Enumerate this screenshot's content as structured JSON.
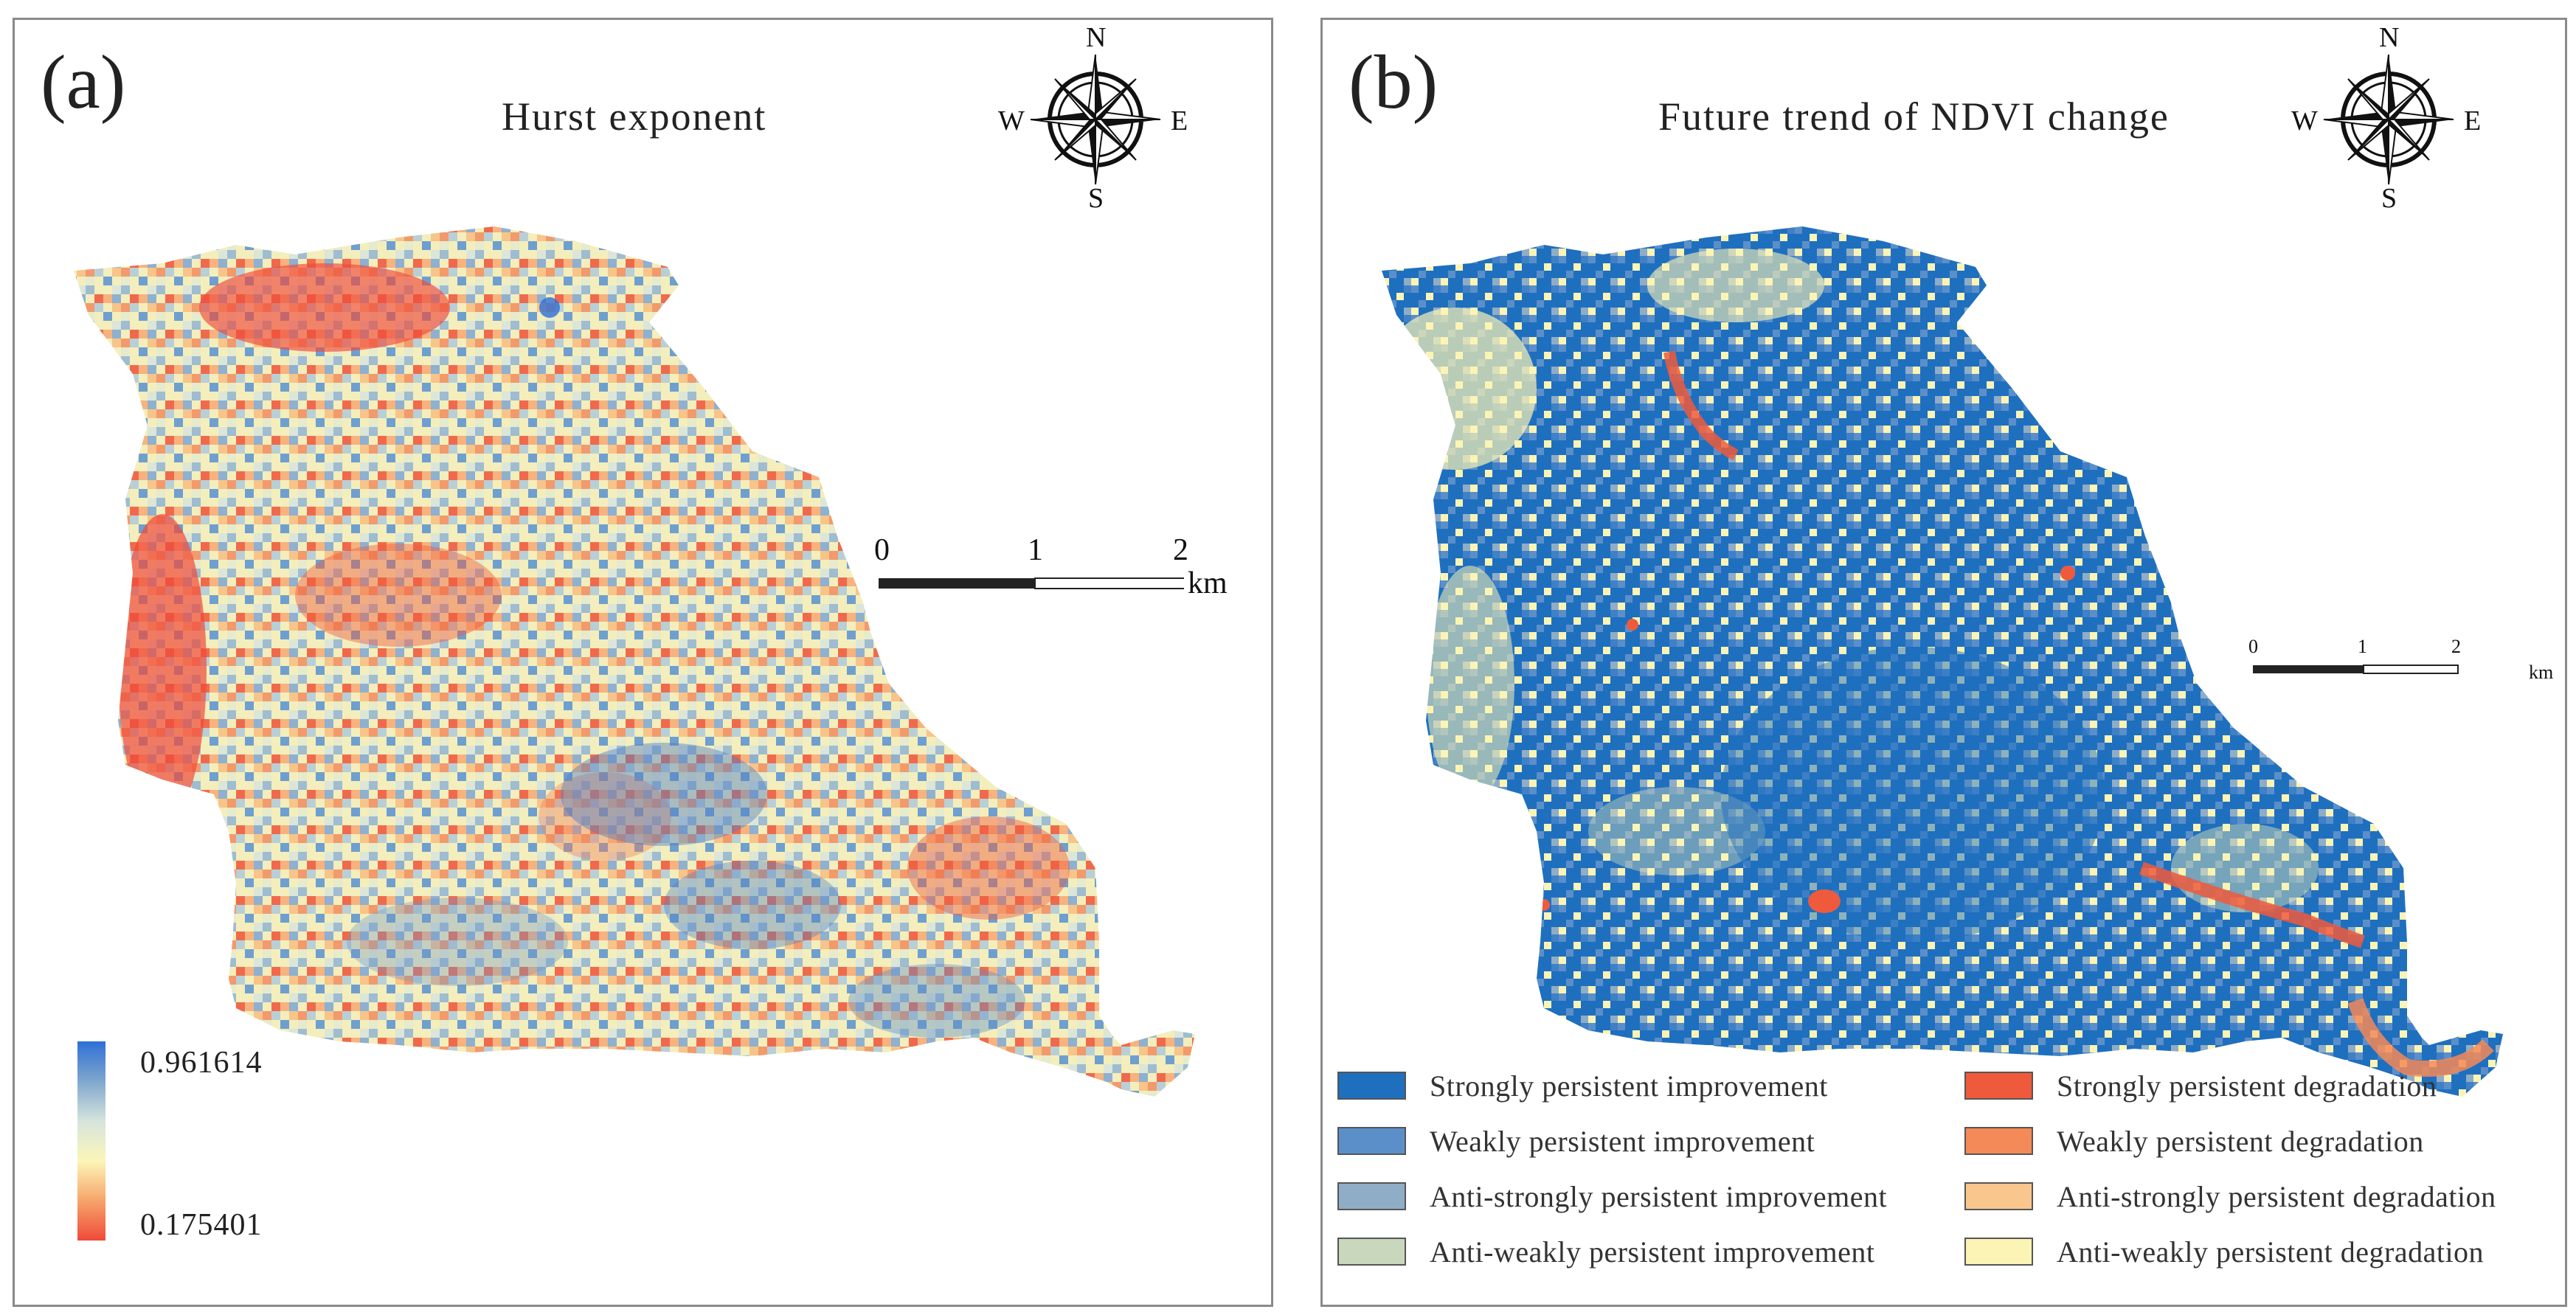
{
  "panels": {
    "a": {
      "letter": "(a)",
      "title": "Hurst exponent",
      "colorbar": {
        "max": "0.961614",
        "min": "0.175401",
        "stops": [
          "#2f6fd6",
          "#7fa7cd",
          "#d6e4dd",
          "#fbf6b8",
          "#f7a46a",
          "#ef4a3a"
        ]
      },
      "scalebar": {
        "ticks": [
          "0",
          "1",
          "2"
        ],
        "unit": "km"
      },
      "compass": {
        "n": "N",
        "s": "S",
        "e": "E",
        "w": "W"
      }
    },
    "b": {
      "letter": "(b)",
      "title": "Future trend of NDVI change",
      "scalebar": {
        "ticks": [
          "0",
          "1",
          "2"
        ],
        "unit": "km"
      },
      "compass": {
        "n": "N",
        "s": "S",
        "e": "E",
        "w": "W"
      },
      "legend": [
        {
          "label": "Strongly persistent improvement",
          "color": "#1f6fbf"
        },
        {
          "label": "Weakly persistent improvement",
          "color": "#5b8fc9"
        },
        {
          "label": "Anti-strongly persistent improvement",
          "color": "#8fadc6"
        },
        {
          "label": "Anti-weakly persistent improvement",
          "color": "#c9d8bd"
        },
        {
          "label": "Strongly persistent degradation",
          "color": "#ef5a3c"
        },
        {
          "label": "Weakly persistent degradation",
          "color": "#f48a57"
        },
        {
          "label": "Anti-strongly persistent degradation",
          "color": "#f9c78d"
        },
        {
          "label": "Anti-weakly persistent degradation",
          "color": "#fbf4b5"
        }
      ]
    }
  }
}
